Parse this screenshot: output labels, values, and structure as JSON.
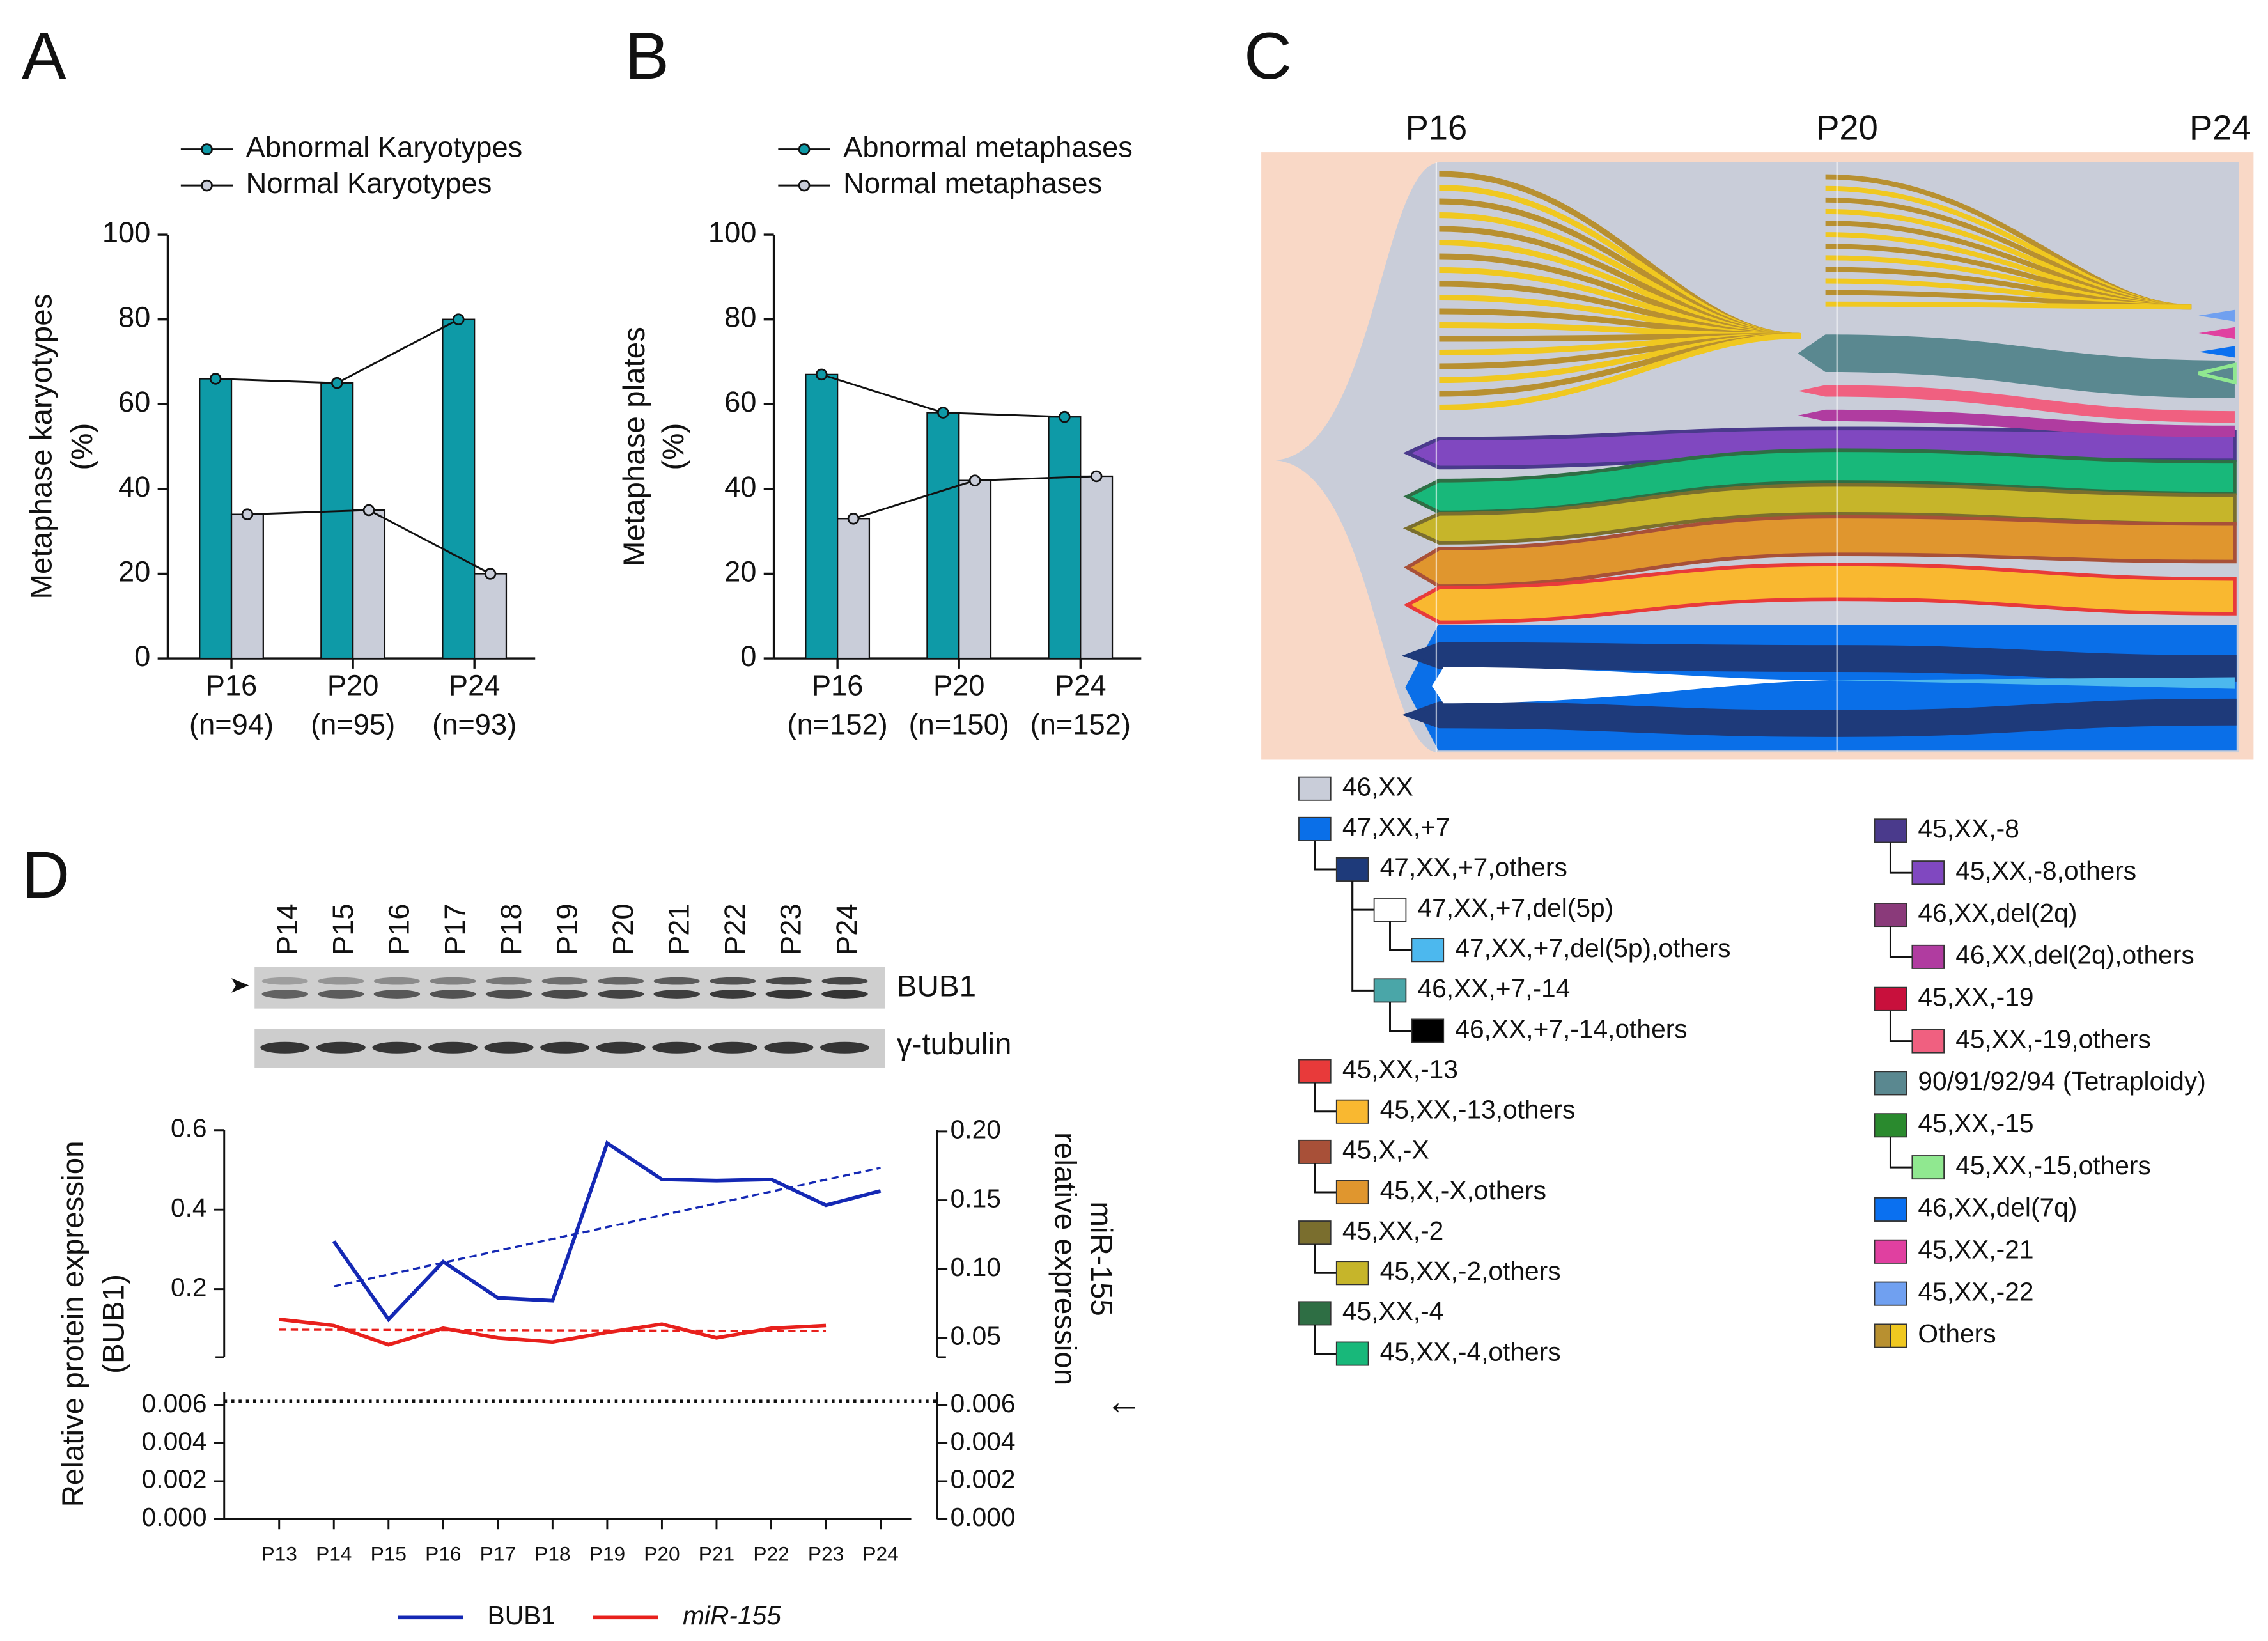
{
  "chart_data": [
    {
      "type": "bar",
      "panel": "A",
      "categories": [
        "P16",
        "P20",
        "P24"
      ],
      "category_sublabels": [
        "(n=94)",
        "(n=95)",
        "(n=93)"
      ],
      "ylabel": [
        "Metaphase karyotypes",
        "(%)"
      ],
      "series": [
        {
          "name": "Abnormal Karyotypes",
          "color": "#0e9aa7",
          "values": [
            66,
            65,
            80
          ]
        },
        {
          "name": "Normal Karyotypes",
          "color": "#c9cdd9",
          "values": [
            34,
            35,
            20
          ]
        }
      ],
      "ylim": [
        0,
        100
      ],
      "yticks": [
        0,
        20,
        40,
        60,
        80,
        100
      ]
    },
    {
      "type": "bar",
      "panel": "B",
      "categories": [
        "P16",
        "P20",
        "P24"
      ],
      "category_sublabels": [
        "(n=152)",
        "(n=150)",
        "(n=152)"
      ],
      "ylabel": [
        "Metaphase plates",
        "(%)"
      ],
      "series": [
        {
          "name": "Abnormal metaphases",
          "color": "#0e9aa7",
          "values": [
            67,
            58,
            57
          ]
        },
        {
          "name": "Normal metaphases",
          "color": "#c9cdd9",
          "values": [
            33,
            42,
            43
          ]
        }
      ],
      "ylim": [
        0,
        100
      ],
      "yticks": [
        0,
        20,
        40,
        60,
        80,
        100
      ]
    },
    {
      "type": "line",
      "panel": "D",
      "blot": {
        "lanes": [
          "P14",
          "P15",
          "P16",
          "P17",
          "P18",
          "P19",
          "P20",
          "P21",
          "P22",
          "P23",
          "P24"
        ],
        "bands": [
          "BUB1",
          "γ-tubulin"
        ]
      },
      "categories": [
        "P13",
        "P14",
        "P15",
        "P16",
        "P17",
        "P18",
        "P19",
        "P20",
        "P21",
        "P22",
        "P23",
        "P24"
      ],
      "ylabel": [
        "Relative protein expression",
        "(BUB1)"
      ],
      "y2label": [
        "miR-155",
        "relative expression"
      ],
      "series": [
        {
          "name": "BUB1",
          "color": "#1428b4",
          "values": [
            null,
            0.32,
            0.124,
            0.269,
            0.178,
            0.171,
            0.567,
            0.476,
            0.473,
            0.476,
            0.411,
            0.447
          ],
          "trend": [
            0.207,
            0.505
          ]
        },
        {
          "name": "miR-155",
          "color": "#e8201c",
          "axis": "y2",
          "italic": true,
          "values": [
            0.0635,
            0.059,
            0.045,
            0.057,
            0.05,
            0.047,
            0.054,
            0.06,
            0.05,
            0.057,
            0.059,
            null
          ],
          "trend": [
            0.056,
            0.055
          ]
        }
      ],
      "ylim": [
        0.029,
        0.6
      ],
      "yticks": [
        0.2,
        0.4,
        0.6
      ],
      "y2lim": [
        0.036,
        0.201
      ],
      "y2ticks": [
        0.05,
        {
          "value": 0.1,
          "label": "0.10"
        },
        0.15,
        {
          "value": 0.2,
          "label": "0.20"
        }
      ],
      "lower_ylim": [
        0,
        0.0067
      ],
      "lower_yticks": [
        {
          "value": 0,
          "label": "0.000"
        },
        0.002,
        0.004,
        0.006
      ],
      "reference_line": 0.0062,
      "annotation": "←"
    }
  ],
  "diagram": {
    "panel": "C",
    "columns": [
      "P16",
      "P20",
      "P24"
    ],
    "legend": [
      [
        {
          "label": "46,XX",
          "color": "#c9cdd9"
        },
        {
          "label": "47,XX,+7",
          "color": "#0a6fe8",
          "children": [
            {
              "label": "47,XX,+7,others",
              "color": "#1e3a7a",
              "children": [
                {
                  "label": "47,XX,+7,del(5p)",
                  "color": "#ffffff",
                  "children": [
                    {
                      "label": "47,XX,+7,del(5p),others",
                      "color": "#4cb8ee"
                    }
                  ]
                },
                {
                  "label": "46,XX,+7,-14",
                  "color": "#4aa6a8",
                  "children": [
                    {
                      "label": "46,XX,+7,-14,others",
                      "color": "#000000"
                    }
                  ]
                }
              ]
            }
          ]
        },
        {
          "label": "45,XX,-13",
          "color": "#e83a3a",
          "children": [
            {
              "label": "45,XX,-13,others",
              "color": "#f9b830"
            }
          ]
        },
        {
          "label": "45,X,-X",
          "color": "#a85038",
          "children": [
            {
              "label": "45,X,-X,others",
              "color": "#e0962e"
            }
          ]
        },
        {
          "label": "45,XX,-2",
          "color": "#7a6e2e",
          "children": [
            {
              "label": "45,XX,-2,others",
              "color": "#c6b52a"
            }
          ]
        },
        {
          "label": "45,XX,-4",
          "color": "#2e6e44",
          "children": [
            {
              "label": "45,XX,-4,others",
              "color": "#18b87a"
            }
          ]
        }
      ],
      [
        {
          "label": "45,XX,-8",
          "color": "#4a3a8c",
          "children": [
            {
              "label": "45,XX,-8,others",
              "color": "#8048c0"
            }
          ]
        },
        {
          "label": "46,XX,del(2q)",
          "color": "#8a3a7a",
          "children": [
            {
              "label": "46,XX,del(2q),others",
              "color": "#b03ca0"
            }
          ]
        },
        {
          "label": "45,XX,-19",
          "color": "#c8103c",
          "children": [
            {
              "label": "45,XX,-19,others",
              "color": "#f06080"
            }
          ]
        },
        {
          "label": "90/91/92/94 (Tetraploidy)",
          "color": "#5a8890"
        },
        {
          "label": "45,XX,-15",
          "color": "#2a8a2e",
          "children": [
            {
              "label": "45,XX,-15,others",
              "color": "#90e890"
            }
          ]
        },
        {
          "label": "46,XX,del(7q)",
          "color": "#0a70f0"
        },
        {
          "label": "45,XX,-21",
          "color": "#e040a0"
        },
        {
          "label": "45,XX,-22",
          "color": "#70a0f0"
        },
        {
          "label": "Others",
          "colors": [
            "#b89030",
            "#f0c820"
          ]
        }
      ]
    ]
  }
}
